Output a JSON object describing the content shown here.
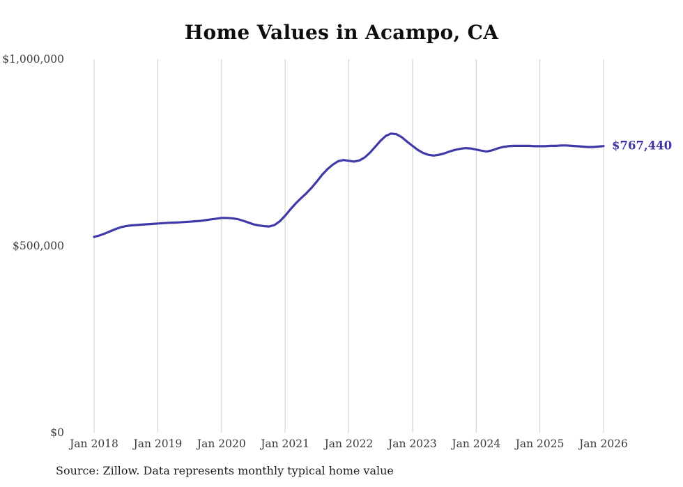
{
  "page": {
    "source_note": "Source: Zillow. Data represents monthly typical home value"
  },
  "chart_data": {
    "type": "line",
    "title": "Home Values in Acampo, CA",
    "series_name": "Typical home value",
    "x_unit": "month",
    "x_start": "2018-01",
    "x_end": "2026-01",
    "ylim": [
      0,
      1000000
    ],
    "grid": "vertical-only",
    "legend": "none",
    "y_ticks": [
      {
        "label": "$0",
        "value": 0
      },
      {
        "label": "$500,000",
        "value": 500000
      },
      {
        "label": "$1,000,000",
        "value": 1000000
      }
    ],
    "x_ticks": [
      {
        "label": "Jan 2018",
        "index": 0
      },
      {
        "label": "Jan 2019",
        "index": 12
      },
      {
        "label": "Jan 2020",
        "index": 24
      },
      {
        "label": "Jan 2021",
        "index": 36
      },
      {
        "label": "Jan 2022",
        "index": 48
      },
      {
        "label": "Jan 2023",
        "index": 60
      },
      {
        "label": "Jan 2024",
        "index": 72
      },
      {
        "label": "Jan 2025",
        "index": 84
      },
      {
        "label": "Jan 2026",
        "index": 96
      }
    ],
    "values": [
      524000,
      528000,
      533000,
      539000,
      545000,
      550000,
      553000,
      555000,
      556000,
      557000,
      558000,
      559000,
      560000,
      561000,
      562000,
      562500,
      563000,
      564000,
      565000,
      566000,
      567000,
      569000,
      571000,
      573000,
      575000,
      575000,
      574000,
      572000,
      568000,
      563000,
      558000,
      555000,
      553000,
      552000,
      556000,
      566000,
      581000,
      598000,
      614000,
      628000,
      641000,
      656000,
      673000,
      691000,
      706000,
      718000,
      727000,
      730000,
      728000,
      726000,
      729000,
      737000,
      750000,
      766000,
      782000,
      795000,
      801000,
      799000,
      791000,
      779000,
      768000,
      757000,
      749000,
      744000,
      742000,
      744000,
      748000,
      753000,
      757000,
      760000,
      762000,
      761000,
      758000,
      755000,
      753000,
      756000,
      761000,
      765000,
      767000,
      768000,
      768000,
      768000,
      768000,
      767000,
      767000,
      767000,
      768000,
      768000,
      769000,
      769000,
      768000,
      767000,
      766000,
      765000,
      765000,
      766000,
      767440
    ],
    "end_value": 767440,
    "end_label": "$767,440",
    "colors": {
      "line": "#3f3aa8",
      "annotation": "#4035a6",
      "gridline": "#cccccc",
      "tick_text": "#3a3a3a"
    }
  }
}
